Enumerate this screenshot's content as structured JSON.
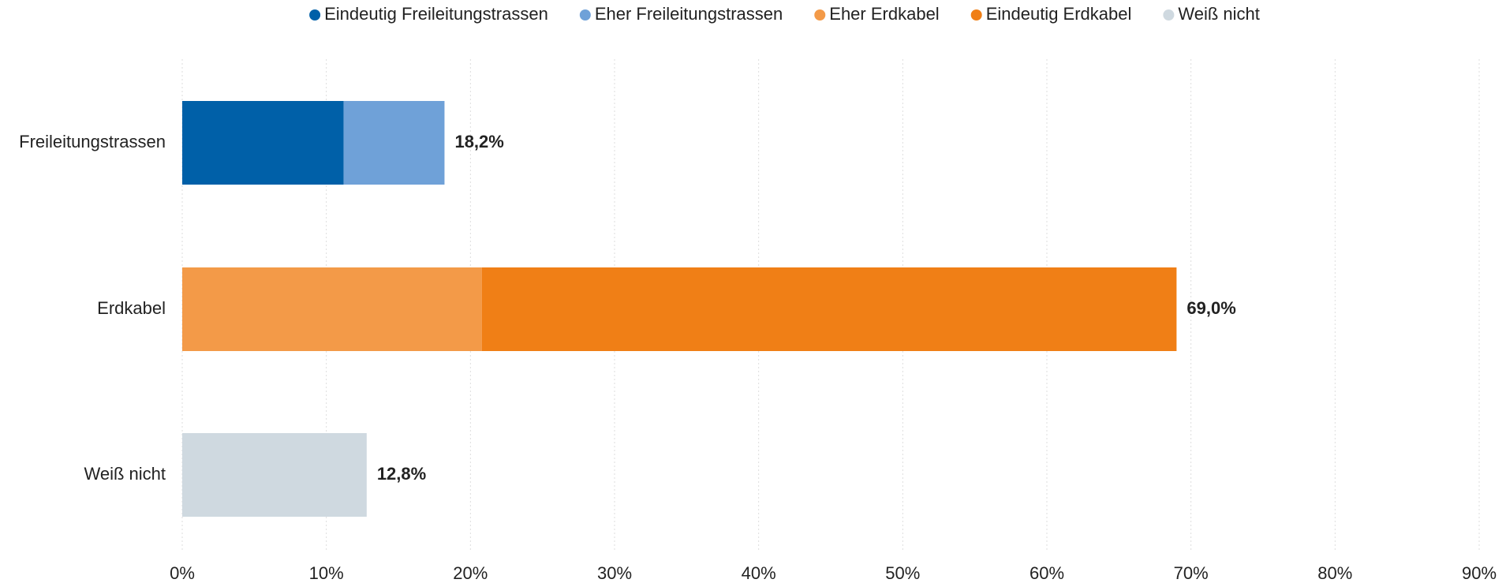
{
  "chart_data": {
    "type": "stacked-barh",
    "categories": [
      "Freileitungstrassen",
      "Erdkabel",
      "Weiß nicht"
    ],
    "series": [
      {
        "name": "Eindeutig Freileitungstrassen",
        "color": "#0060a8",
        "values": [
          11.2,
          null,
          null
        ]
      },
      {
        "name": "Eher Freileitungstrassen",
        "color": "#6fa1d8",
        "values": [
          7.0,
          null,
          null
        ]
      },
      {
        "name": "Eher Erdkabel",
        "color": "#f39a48",
        "values": [
          null,
          20.8,
          null
        ]
      },
      {
        "name": "Eindeutig Erdkabel",
        "color": "#f07f16",
        "values": [
          null,
          48.2,
          null
        ]
      },
      {
        "name": "Weiß nicht",
        "color": "#cfd9e0",
        "values": [
          null,
          null,
          12.8
        ]
      }
    ],
    "totals": {
      "values": [
        18.2,
        69.0,
        12.8
      ],
      "value_labels": [
        "18,2%",
        "69,0%",
        "12,8%"
      ]
    },
    "xlim": [
      0,
      90
    ],
    "xticks": [
      {
        "value": 0,
        "label": "0%"
      },
      {
        "value": 10,
        "label": "10%"
      },
      {
        "value": 20,
        "label": "20%"
      },
      {
        "value": 30,
        "label": "30%"
      },
      {
        "value": 40,
        "label": "40%"
      },
      {
        "value": 50,
        "label": "50%"
      },
      {
        "value": 60,
        "label": "60%"
      },
      {
        "value": 70,
        "label": "70%"
      },
      {
        "value": 80,
        "label": "80%"
      },
      {
        "value": 90,
        "label": "90%"
      }
    ],
    "grid": true,
    "legend": "top"
  }
}
